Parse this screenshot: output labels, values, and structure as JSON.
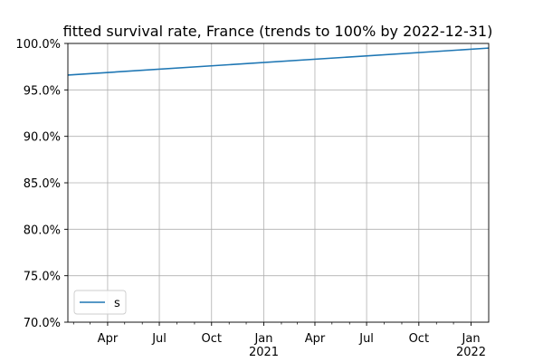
{
  "chart_data": {
    "type": "line",
    "title": "fitted survival rate, France (trends to 100% by 2022-12-31)",
    "xlabel": "",
    "ylabel": "",
    "xlim": [
      "2020-01-22",
      "2022-02-01"
    ],
    "ylim": [
      0.7,
      1.0
    ],
    "y_format": "percent_1dp",
    "y_ticks": [
      0.7,
      0.75,
      0.8,
      0.85,
      0.9,
      0.95,
      1.0
    ],
    "y_tick_labels": [
      "70.0%",
      "75.0%",
      "80.0%",
      "85.0%",
      "90.0%",
      "95.0%",
      "100.0%"
    ],
    "x_major_ticks": [
      "2020-04-01",
      "2020-07-01",
      "2020-10-01",
      "2021-01-01",
      "2021-04-01",
      "2021-07-01",
      "2021-10-01",
      "2022-01-01"
    ],
    "x_tick_labels": [
      "Apr",
      "Jul",
      "Oct",
      "Jan",
      "Apr",
      "Jul",
      "Oct",
      "Jan"
    ],
    "x_year_labels": [
      "",
      "",
      "",
      "2021",
      "",
      "",
      "",
      "2022"
    ],
    "x_minor_ticks": [
      "2020-02-01",
      "2020-03-01",
      "2020-05-01",
      "2020-06-01",
      "2020-08-01",
      "2020-09-01",
      "2020-11-01",
      "2020-12-01",
      "2021-02-01",
      "2021-03-01",
      "2021-05-01",
      "2021-06-01",
      "2021-08-01",
      "2021-09-01",
      "2021-11-01",
      "2021-12-01"
    ],
    "grid": true,
    "legend_position": "lower-left",
    "series": [
      {
        "name": "s",
        "color": "#1f77b4",
        "x": [
          "2020-01-22",
          "2022-02-01"
        ],
        "values": [
          0.966,
          0.995
        ]
      }
    ]
  }
}
